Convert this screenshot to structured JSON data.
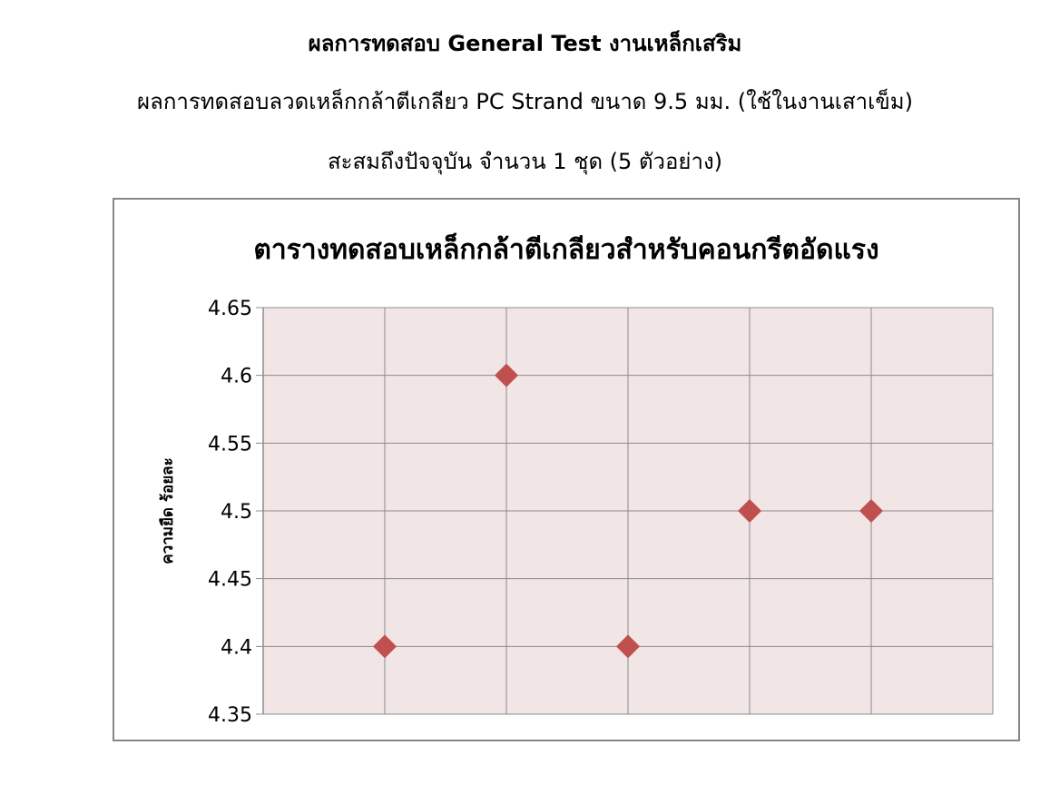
{
  "header": {
    "title": "ผลการทดสอบ General Test งานเหล็กเสริม",
    "subtitle": "ผลการทดสอบลวดเหล็กกล้าตีเกลียว PC Strand ขนาด 9.5 มม. (ใช้ในงานเสาเข็ม)",
    "summary": "สะสมถึงปัจจุบัน จำนวน 1 ชุด (5 ตัวอย่าง)"
  },
  "chart_data": {
    "type": "scatter",
    "title": "ตารางทดสอบเหล็กกล้าตีเกลียวสำหรับคอนกรีตอัดแรง",
    "xlabel": "",
    "ylabel": "ความยืด ร้อยละ",
    "x": [
      1,
      2,
      3,
      4,
      5
    ],
    "y": [
      4.4,
      4.6,
      4.4,
      4.5,
      4.5
    ],
    "xlim": [
      0,
      6
    ],
    "ylim": [
      4.35,
      4.65
    ],
    "yticks": [
      "4.35",
      "4.4",
      "4.45",
      "4.5",
      "4.55",
      "4.6",
      "4.65"
    ],
    "grid": true,
    "marker": "diamond",
    "colors": {
      "marker": "#c0504d",
      "plot_bg": "#f2e5e6",
      "grid": "#8c8c8c"
    }
  }
}
